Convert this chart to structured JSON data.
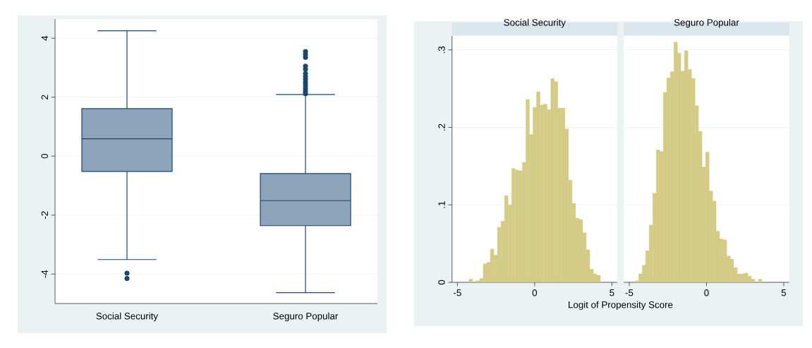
{
  "chart_data": [
    {
      "type": "box",
      "categories": [
        "Social Security",
        "Seguro Popular"
      ],
      "boxes": [
        {
          "low": -3.51,
          "q1": -0.52,
          "median": 0.59,
          "q3": 1.61,
          "high": 4.25,
          "outliers": [
            -3.97,
            -4.15
          ]
        },
        {
          "low": -4.63,
          "q1": -2.36,
          "median": -1.51,
          "q3": -0.59,
          "high": 2.09,
          "outliers": [
            2.12,
            2.2,
            2.3,
            2.4,
            2.5,
            2.6,
            2.7,
            2.8,
            2.95,
            3.05,
            3.35,
            3.45,
            3.55
          ]
        }
      ],
      "color": "#8ea4bb",
      "ylim": [
        -5,
        4.65
      ],
      "yticks": [
        -4,
        -2,
        0,
        2,
        4
      ],
      "grid": "y"
    },
    {
      "type": "histogram",
      "title": "Social Security",
      "bins": [
        -4.25,
        -4.02,
        -3.79,
        -3.56,
        -3.33,
        -3.1,
        -2.87,
        -2.64,
        -2.41,
        -2.18,
        -1.95,
        -1.72,
        -1.49,
        -1.26,
        -1.03,
        -0.8,
        -0.57,
        -0.34,
        -0.11,
        0.12,
        0.35,
        0.58,
        0.81,
        1.04,
        1.27,
        1.5,
        1.73,
        1.96,
        2.19,
        2.42,
        2.65,
        2.88,
        3.11,
        3.34,
        3.57,
        3.8,
        4.03,
        4.26
      ],
      "values": [
        0.004,
        0,
        0.002,
        0.005,
        0.024,
        0.026,
        0.043,
        0.035,
        0.071,
        0.079,
        0.112,
        0.1,
        0.147,
        0.145,
        0.144,
        0.155,
        0.236,
        0.191,
        0.226,
        0.246,
        0.229,
        0.23,
        0.223,
        0.263,
        0.259,
        0.225,
        0.225,
        0.198,
        0.132,
        0.102,
        0.083,
        0.081,
        0.064,
        0.042,
        0.017,
        0.011,
        0.009
      ],
      "color": "#d4cb86",
      "xlim": [
        -5.35,
        5.35
      ],
      "ylim": [
        0,
        0.318
      ],
      "xticks": [
        -5,
        0,
        5
      ],
      "yticks": [
        0,
        {
          "value": 0.1,
          "label": ".1"
        },
        {
          "value": 0.2,
          "label": ".2"
        },
        {
          "value": 0.3,
          "label": ".3"
        }
      ],
      "grid": "y"
    },
    {
      "type": "histogram",
      "title": "Seguro Popular",
      "xlabel": "Logit of Propensity Score",
      "bins": [
        -4.62,
        -4.39,
        -4.16,
        -3.94,
        -3.71,
        -3.48,
        -3.25,
        -3.02,
        -2.8,
        -2.57,
        -2.34,
        -2.11,
        -1.88,
        -1.66,
        -1.43,
        -1.2,
        -0.97,
        -0.74,
        -0.52,
        -0.29,
        -0.06,
        0.17,
        0.4,
        0.62,
        0.85,
        1.08,
        1.31,
        1.54,
        1.76,
        1.99,
        2.22,
        2.45,
        2.68,
        2.9,
        3.13,
        3.36,
        3.59
      ],
      "values": [
        0.002,
        0.011,
        0.022,
        0.041,
        0.074,
        0.115,
        0.171,
        0.169,
        0.245,
        0.264,
        0.272,
        0.31,
        0.296,
        0.273,
        0.299,
        0.275,
        0.263,
        0.228,
        0.195,
        0.149,
        0.168,
        0.118,
        0.105,
        0.066,
        0.056,
        0.055,
        0.034,
        0.03,
        0.019,
        0.011,
        0.011,
        0.012,
        0.008,
        0.004,
        0,
        0.004
      ],
      "color": "#d4cb86",
      "xlim": [
        -5.35,
        5.35
      ],
      "ylim": [
        0,
        0.318
      ],
      "xticks": [
        -5,
        0,
        5
      ],
      "yticks": [
        {
          "value": 0,
          "label": null
        },
        {
          "value": 0.1,
          "label": null
        },
        {
          "value": 0.2,
          "label": null
        },
        {
          "value": 0.3,
          "label": null
        }
      ],
      "grid": "y",
      "tick_labels": "x"
    }
  ]
}
